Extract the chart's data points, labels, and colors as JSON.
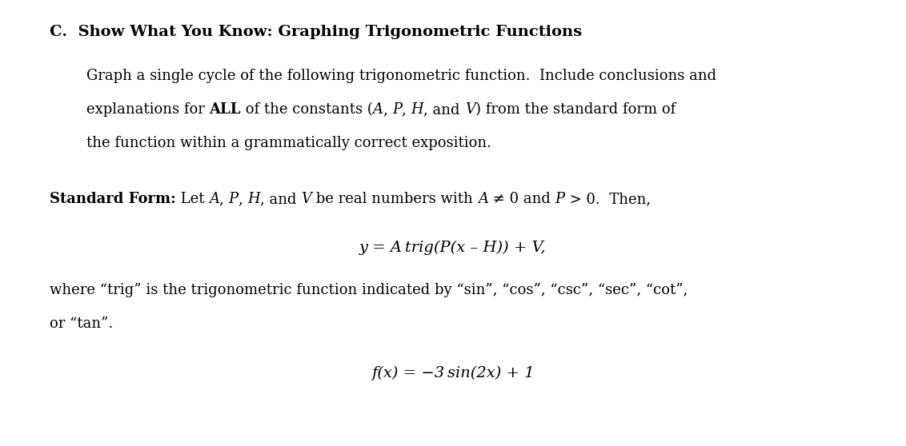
{
  "background_color": "#ffffff",
  "figsize": [
    11.32,
    5.58
  ],
  "dpi": 100,
  "font_family": "DejaVu Serif",
  "title_fontsize": 14,
  "body_fontsize": 13,
  "eq_fontsize": 14
}
